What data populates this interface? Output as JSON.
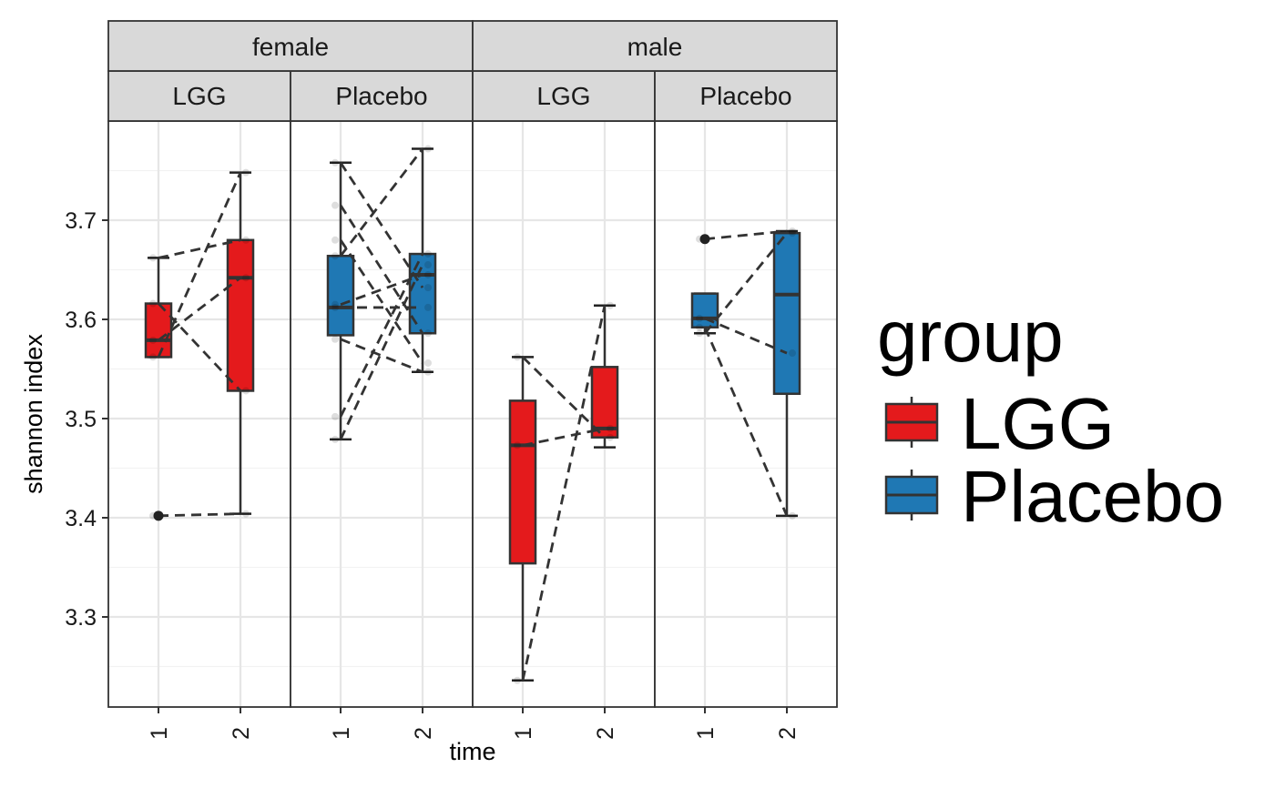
{
  "chart_data": {
    "type": "box",
    "xlabel": "time",
    "ylabel": "shannon index",
    "ylim": [
      3.22,
      3.81
    ],
    "y_ticks": [
      3.3,
      3.4,
      3.5,
      3.6,
      3.7
    ],
    "y_tick_labels": [
      "3.3",
      "3.4",
      "3.5",
      "3.6",
      "3.7"
    ],
    "x_tick_labels": [
      "1",
      "2"
    ],
    "facet_rows_top": [
      "female",
      "male"
    ],
    "facet_labels": [
      "LGG",
      "Placebo",
      "LGG",
      "Placebo"
    ],
    "legend": {
      "title": "group",
      "placement": "right",
      "entries": [
        {
          "label": "LGG",
          "color": "#E41A1C"
        },
        {
          "label": "Placebo",
          "color": "#1F78B4"
        }
      ]
    },
    "colors": {
      "LGG": "#E41A1C",
      "Placebo": "#1F78B4"
    },
    "grid": true,
    "panels": [
      {
        "sex": "female",
        "group": "LGG",
        "boxes": [
          {
            "time": "1",
            "min": 3.562,
            "q1": 3.562,
            "median": 3.579,
            "q3": 3.616,
            "max": 3.662
          },
          {
            "time": "2",
            "min": 3.404,
            "q1": 3.528,
            "median": 3.642,
            "q3": 3.68,
            "max": 3.748
          }
        ],
        "outliers": [
          {
            "time": "1",
            "y": 3.402
          }
        ],
        "pairs": [
          [
            3.402,
            3.404
          ],
          [
            3.562,
            3.748
          ],
          [
            3.579,
            3.642
          ],
          [
            3.616,
            3.528
          ],
          [
            3.662,
            3.68
          ]
        ]
      },
      {
        "sex": "female",
        "group": "Placebo",
        "boxes": [
          {
            "time": "1",
            "min": 3.479,
            "q1": 3.584,
            "median": 3.612,
            "q3": 3.664,
            "max": 3.758
          },
          {
            "time": "2",
            "min": 3.547,
            "q1": 3.586,
            "median": 3.645,
            "q3": 3.666,
            "max": 3.772
          }
        ],
        "outliers": [],
        "pairs": [
          [
            3.479,
            3.655
          ],
          [
            3.502,
            3.666
          ],
          [
            3.58,
            3.547
          ],
          [
            3.612,
            3.612
          ],
          [
            3.615,
            3.645
          ],
          [
            3.664,
            3.772
          ],
          [
            3.715,
            3.586
          ],
          [
            3.758,
            3.632
          ],
          [
            3.68,
            3.556
          ]
        ]
      },
      {
        "sex": "male",
        "group": "LGG",
        "boxes": [
          {
            "time": "1",
            "min": 3.236,
            "q1": 3.354,
            "median": 3.473,
            "q3": 3.518,
            "max": 3.562
          },
          {
            "time": "2",
            "min": 3.471,
            "q1": 3.481,
            "median": 3.49,
            "q3": 3.552,
            "max": 3.614
          }
        ],
        "outliers": [],
        "pairs": [
          [
            3.236,
            3.614
          ],
          [
            3.473,
            3.49
          ],
          [
            3.562,
            3.481
          ]
        ]
      },
      {
        "sex": "male",
        "group": "Placebo",
        "boxes": [
          {
            "time": "1",
            "min": 3.586,
            "q1": 3.592,
            "median": 3.601,
            "q3": 3.626,
            "max": 3.626
          },
          {
            "time": "2",
            "min": 3.402,
            "q1": 3.525,
            "median": 3.625,
            "q3": 3.687,
            "max": 3.689
          }
        ],
        "outliers": [
          {
            "time": "1",
            "y": 3.681
          }
        ],
        "pairs": [
          [
            3.681,
            3.689
          ],
          [
            3.601,
            3.566
          ],
          [
            3.592,
            3.402
          ],
          [
            3.586,
            3.687
          ]
        ]
      }
    ]
  }
}
